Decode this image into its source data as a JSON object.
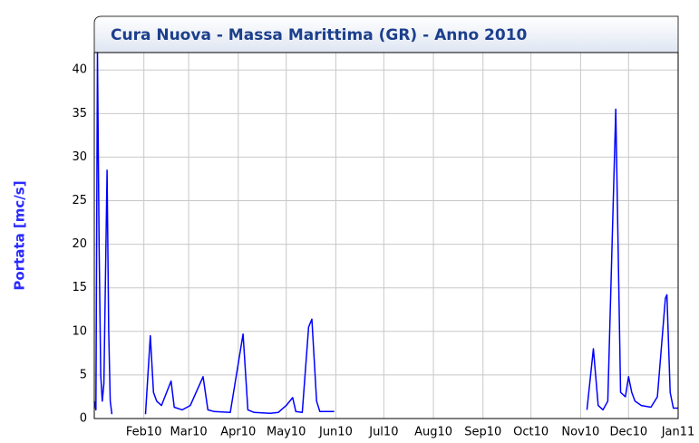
{
  "chart_data": {
    "type": "line",
    "title": "Cura Nuova - Massa Marittima (GR) - Anno 2010",
    "y_label": "Portata [mc/s]",
    "x": [
      0,
      1,
      2,
      3,
      4,
      5,
      6,
      8,
      9,
      10,
      11,
      20,
      32,
      35,
      37,
      39,
      42,
      48,
      50,
      55,
      60,
      68,
      71,
      75,
      85,
      93,
      96,
      100,
      110,
      115,
      120,
      124,
      126,
      130,
      134,
      136,
      139,
      141,
      150,
      230,
      308,
      312,
      315,
      318,
      321,
      326,
      329,
      332,
      334,
      336,
      338,
      342,
      348,
      352,
      357,
      358,
      360,
      362,
      365
    ],
    "values": [
      2,
      1,
      42,
      20,
      5,
      2,
      4,
      28.5,
      10,
      2,
      0.5,
      null,
      0.5,
      9.5,
      3,
      2,
      1.5,
      4.3,
      1.3,
      1,
      1.5,
      4.8,
      1,
      0.8,
      0.7,
      9.7,
      1,
      0.7,
      0.6,
      0.7,
      1.5,
      2.4,
      0.8,
      0.7,
      10.5,
      11.4,
      2,
      0.8,
      0.8,
      null,
      1,
      8,
      1.5,
      1,
      2,
      35.5,
      3,
      2.5,
      4.8,
      3,
      2,
      1.5,
      1.3,
      2.5,
      13.8,
      14.2,
      3,
      1.2,
      1.2
    ],
    "color": "#0000ff",
    "xlim": [
      0,
      365
    ],
    "xticks": [
      {
        "value": 31,
        "label": "Feb10"
      },
      {
        "value": 59,
        "label": "Mar10"
      },
      {
        "value": 90,
        "label": "Apr10"
      },
      {
        "value": 120,
        "label": "May10"
      },
      {
        "value": 151,
        "label": "Jun10"
      },
      {
        "value": 181,
        "label": "Jul10"
      },
      {
        "value": 212,
        "label": "Aug10"
      },
      {
        "value": 243,
        "label": "Sep10"
      },
      {
        "value": 273,
        "label": "Oct10"
      },
      {
        "value": 304,
        "label": "Nov10"
      },
      {
        "value": 334,
        "label": "Dec10"
      },
      {
        "value": 365,
        "label": "Jan11"
      }
    ],
    "ylim": [
      0,
      42
    ],
    "yticks": [
      0,
      5,
      10,
      15,
      20,
      25,
      30,
      35,
      40
    ],
    "grid": true
  }
}
